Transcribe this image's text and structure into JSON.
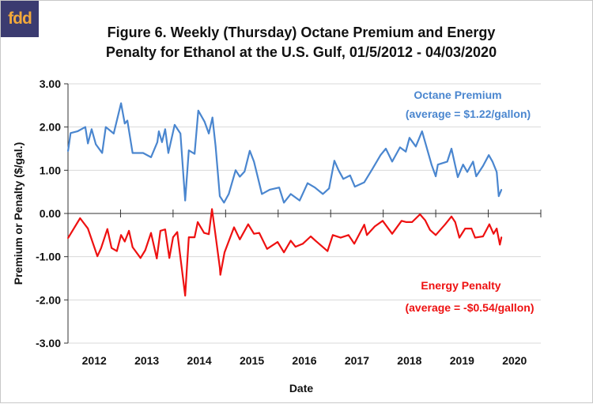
{
  "logo_text": "fdd",
  "chart_data": {
    "type": "line",
    "title_line1": "Figure 6. Weekly (Thursday) Octane Premium and Energy",
    "title_line2": "Penalty for Ethanol at the U.S. Gulf, 01/5/2012 - 04/03/2020",
    "xlabel": "Date",
    "ylabel": "Premium or Penalty ($/gal.)",
    "xlim": [
      2012,
      2021
    ],
    "ylim": [
      -3,
      3
    ],
    "grid": true,
    "y_ticks": [
      3,
      2,
      1,
      0,
      -1,
      -2,
      -3
    ],
    "y_tick_labels": [
      "3.00",
      "2.00",
      "1.00",
      "0.00",
      "-1.00",
      "-2.00",
      "-3.00"
    ],
    "x_tick_labels": [
      "2012",
      "2013",
      "2014",
      "2015",
      "2016",
      "2017",
      "2018",
      "2019",
      "2020"
    ],
    "colors": {
      "octane": "#4a86cf",
      "energy": "#ee1111"
    },
    "annotations": {
      "octane_name": "Octane Premium",
      "octane_avg": "(average = $1.22/gallon)",
      "energy_name": "Energy Penalty",
      "energy_avg": "(average = -$0.54/gallon)"
    },
    "series": [
      {
        "name": "Octane Premium",
        "x": [
          2012.0,
          2012.05,
          2012.18,
          2012.33,
          2012.38,
          2012.45,
          2012.53,
          2012.65,
          2012.72,
          2012.87,
          2013.01,
          2013.08,
          2013.13,
          2013.23,
          2013.43,
          2013.58,
          2013.7,
          2013.73,
          2013.79,
          2013.85,
          2013.91,
          2014.03,
          2014.14,
          2014.23,
          2014.3,
          2014.41,
          2014.48,
          2014.6,
          2014.68,
          2014.75,
          2014.81,
          2014.89,
          2014.97,
          2015.06,
          2015.19,
          2015.27,
          2015.36,
          2015.46,
          2015.54,
          2015.61,
          2015.69,
          2015.84,
          2016.02,
          2016.11,
          2016.24,
          2016.41,
          2016.56,
          2016.7,
          2016.85,
          2016.97,
          2017.07,
          2017.15,
          2017.24,
          2017.37,
          2017.46,
          2017.64,
          2017.79,
          2017.95,
          2018.05,
          2018.17,
          2018.32,
          2018.43,
          2018.5,
          2018.62,
          2018.74,
          2018.92,
          2019.0,
          2019.04,
          2019.22,
          2019.3,
          2019.42,
          2019.52,
          2019.6,
          2019.71,
          2019.77,
          2019.9,
          2020.01,
          2020.08,
          2020.16,
          2020.2,
          2020.25
        ],
        "values": [
          1.44,
          1.86,
          1.9,
          2.0,
          1.62,
          1.95,
          1.6,
          1.4,
          2.0,
          1.85,
          2.55,
          2.08,
          2.15,
          1.4,
          1.4,
          1.3,
          1.65,
          1.9,
          1.65,
          1.95,
          1.4,
          2.05,
          1.85,
          0.3,
          1.46,
          1.38,
          2.38,
          2.12,
          1.85,
          2.22,
          1.55,
          0.4,
          0.25,
          0.45,
          1.0,
          0.85,
          0.97,
          1.45,
          1.2,
          0.85,
          0.45,
          0.55,
          0.6,
          0.25,
          0.45,
          0.3,
          0.7,
          0.6,
          0.45,
          0.58,
          1.22,
          1.0,
          0.8,
          0.88,
          0.62,
          0.72,
          1.02,
          1.35,
          1.5,
          1.2,
          1.53,
          1.43,
          1.75,
          1.55,
          1.9,
          1.13,
          0.86,
          1.13,
          1.2,
          1.5,
          0.84,
          1.13,
          0.96,
          1.2,
          0.86,
          1.1,
          1.35,
          1.2,
          0.96,
          0.4,
          0.55
        ]
      },
      {
        "name": "Energy Penalty",
        "x": [
          2012.0,
          2012.23,
          2012.38,
          2012.56,
          2012.63,
          2012.75,
          2012.83,
          2012.93,
          2013.01,
          2013.08,
          2013.16,
          2013.23,
          2013.38,
          2013.47,
          2013.58,
          2013.69,
          2013.76,
          2013.85,
          2013.93,
          2014.0,
          2014.08,
          2014.23,
          2014.3,
          2014.41,
          2014.47,
          2014.59,
          2014.68,
          2014.74,
          2014.8,
          2014.89,
          2014.9,
          2014.98,
          2015.16,
          2015.27,
          2015.43,
          2015.54,
          2015.64,
          2015.79,
          2015.99,
          2016.11,
          2016.24,
          2016.33,
          2016.47,
          2016.62,
          2016.71,
          2016.94,
          2017.04,
          2017.19,
          2017.34,
          2017.45,
          2017.64,
          2017.69,
          2017.84,
          2017.99,
          2018.17,
          2018.35,
          2018.44,
          2018.55,
          2018.7,
          2018.8,
          2018.89,
          2019.0,
          2019.18,
          2019.3,
          2019.37,
          2019.45,
          2019.56,
          2019.68,
          2019.75,
          2019.9,
          2020.02,
          2020.1,
          2020.16,
          2020.22,
          2020.25
        ],
        "values": [
          -0.57,
          -0.11,
          -0.35,
          -0.99,
          -0.8,
          -0.36,
          -0.8,
          -0.87,
          -0.5,
          -0.65,
          -0.4,
          -0.78,
          -1.03,
          -0.85,
          -0.45,
          -1.04,
          -0.4,
          -0.37,
          -1.03,
          -0.55,
          -0.43,
          -1.9,
          -0.55,
          -0.55,
          -0.2,
          -0.45,
          -0.48,
          0.1,
          -0.42,
          -1.25,
          -1.42,
          -0.9,
          -0.32,
          -0.6,
          -0.25,
          -0.47,
          -0.45,
          -0.82,
          -0.66,
          -0.9,
          -0.63,
          -0.77,
          -0.7,
          -0.53,
          -0.63,
          -0.87,
          -0.5,
          -0.56,
          -0.5,
          -0.7,
          -0.26,
          -0.5,
          -0.3,
          -0.17,
          -0.47,
          -0.17,
          -0.2,
          -0.2,
          -0.02,
          -0.16,
          -0.38,
          -0.5,
          -0.25,
          -0.07,
          -0.2,
          -0.56,
          -0.35,
          -0.35,
          -0.56,
          -0.53,
          -0.25,
          -0.47,
          -0.35,
          -0.72,
          -0.55
        ]
      }
    ]
  }
}
